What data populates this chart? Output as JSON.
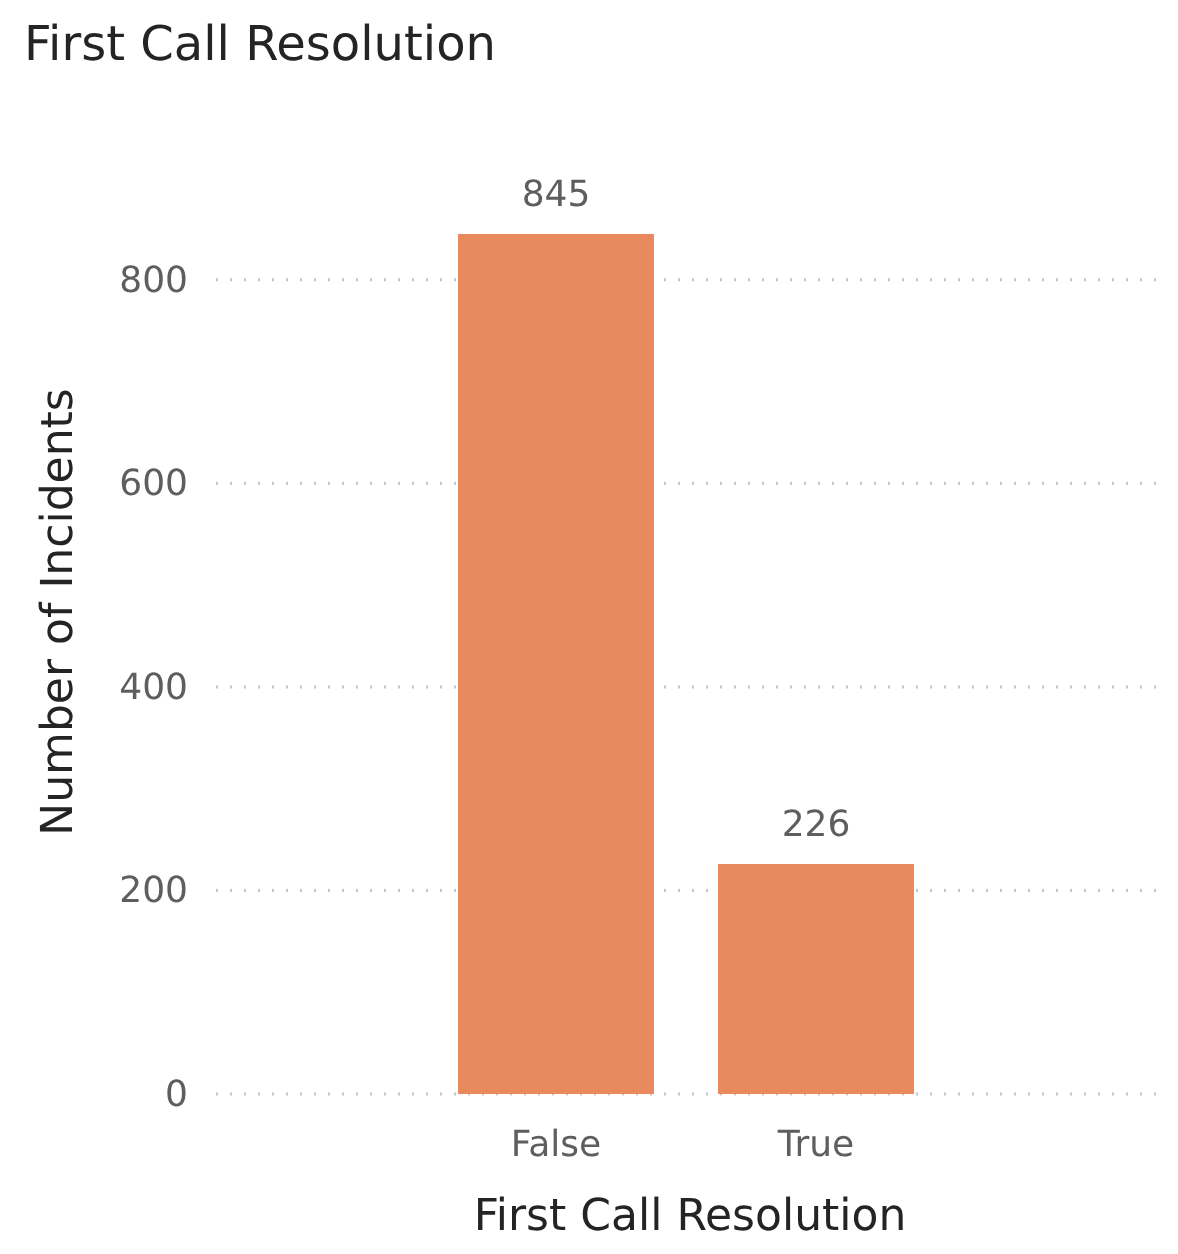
{
  "chart_data": {
    "type": "bar",
    "title": "First Call Resolution",
    "xlabel": "First Call Resolution",
    "ylabel": "Number of Incidents",
    "categories": [
      "False",
      "True"
    ],
    "values": [
      845,
      226
    ],
    "color": "#e8895e",
    "ylim": [
      0,
      845
    ],
    "yticks": [
      0,
      200,
      400,
      600,
      800
    ],
    "grid": "y",
    "data_labels": true
  }
}
